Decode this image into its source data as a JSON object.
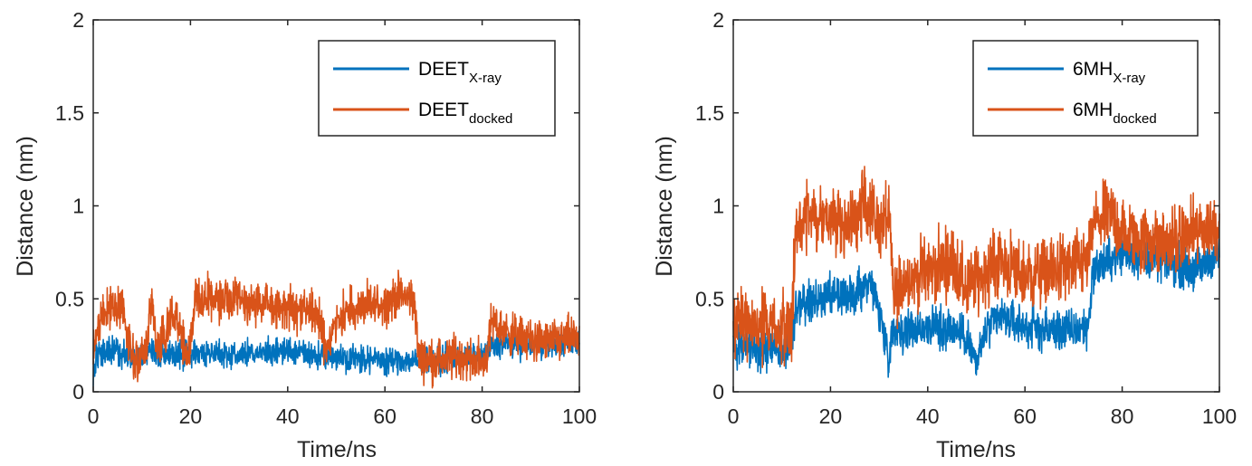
{
  "colors": {
    "xray": "#0072BD",
    "docked": "#D95319",
    "axis": "#262626"
  },
  "chart_data": [
    {
      "type": "line",
      "xlabel": "Time/ns",
      "ylabel": "Distance (nm)",
      "xlim": [
        0,
        100
      ],
      "ylim": [
        0,
        2
      ],
      "xticks": [
        "0",
        "20",
        "40",
        "60",
        "80",
        "100"
      ],
      "yticks": [
        "0",
        "0.5",
        "1",
        "1.5",
        "2"
      ],
      "grid": false,
      "legend_position": "top-right",
      "series": [
        {
          "name": "DEET",
          "name_sub": "X-ray",
          "x": [
            0,
            1,
            2,
            4,
            6,
            8,
            10,
            12,
            14,
            16,
            18,
            20,
            25,
            30,
            35,
            40,
            45,
            50,
            55,
            60,
            65,
            67,
            70,
            75,
            80,
            82,
            85,
            90,
            95,
            100
          ],
          "values": [
            0.12,
            0.2,
            0.21,
            0.22,
            0.2,
            0.19,
            0.2,
            0.22,
            0.2,
            0.21,
            0.2,
            0.21,
            0.21,
            0.2,
            0.21,
            0.22,
            0.2,
            0.19,
            0.18,
            0.17,
            0.17,
            0.16,
            0.17,
            0.18,
            0.18,
            0.24,
            0.26,
            0.25,
            0.26,
            0.27
          ],
          "noise": 0.035
        },
        {
          "name": "DEET",
          "name_sub": "docked",
          "x": [
            0,
            1,
            2,
            3,
            5,
            6,
            7,
            8,
            10,
            11,
            12,
            13,
            15,
            16,
            18,
            19,
            20,
            21,
            25,
            30,
            35,
            40,
            45,
            47,
            48,
            50,
            55,
            60,
            63,
            66,
            67,
            70,
            75,
            80,
            81,
            82,
            85,
            90,
            95,
            100
          ],
          "values": [
            0.2,
            0.35,
            0.42,
            0.45,
            0.45,
            0.46,
            0.3,
            0.18,
            0.2,
            0.22,
            0.5,
            0.25,
            0.3,
            0.45,
            0.35,
            0.2,
            0.22,
            0.5,
            0.5,
            0.48,
            0.47,
            0.45,
            0.43,
            0.35,
            0.22,
            0.4,
            0.45,
            0.48,
            0.52,
            0.5,
            0.18,
            0.17,
            0.19,
            0.16,
            0.2,
            0.38,
            0.32,
            0.28,
            0.27,
            0.3
          ],
          "noise": 0.055
        }
      ]
    },
    {
      "type": "line",
      "xlabel": "Time/ns",
      "ylabel": "Distance (nm)",
      "xlim": [
        0,
        100
      ],
      "ylim": [
        0,
        2
      ],
      "xticks": [
        "0",
        "20",
        "40",
        "60",
        "80",
        "100"
      ],
      "yticks": [
        "0",
        "0.5",
        "1",
        "1.5",
        "2"
      ],
      "grid": false,
      "legend_position": "top-right",
      "series": [
        {
          "name": "6MH",
          "name_sub": "X-ray",
          "x": [
            0,
            5,
            10,
            12,
            13,
            15,
            20,
            25,
            28,
            30,
            31,
            32,
            33,
            35,
            40,
            45,
            48,
            50,
            52,
            55,
            60,
            65,
            70,
            73,
            74,
            78,
            80,
            85,
            90,
            95,
            100
          ],
          "values": [
            0.25,
            0.24,
            0.23,
            0.25,
            0.45,
            0.48,
            0.5,
            0.52,
            0.6,
            0.45,
            0.3,
            0.2,
            0.35,
            0.33,
            0.35,
            0.34,
            0.3,
            0.15,
            0.33,
            0.4,
            0.35,
            0.33,
            0.33,
            0.35,
            0.65,
            0.72,
            0.75,
            0.72,
            0.7,
            0.65,
            0.75
          ],
          "noise": 0.055
        },
        {
          "name": "6MH",
          "name_sub": "docked",
          "x": [
            0,
            5,
            10,
            12,
            13,
            15,
            20,
            25,
            27,
            30,
            32,
            33,
            35,
            40,
            45,
            48,
            50,
            55,
            60,
            65,
            70,
            73,
            74,
            78,
            80,
            85,
            90,
            95,
            100
          ],
          "values": [
            0.35,
            0.36,
            0.36,
            0.38,
            0.85,
            0.95,
            0.92,
            0.9,
            1.05,
            0.88,
            0.95,
            0.5,
            0.6,
            0.65,
            0.7,
            0.55,
            0.6,
            0.7,
            0.62,
            0.65,
            0.67,
            0.7,
            0.9,
            0.95,
            0.85,
            0.82,
            0.8,
            0.85,
            0.9
          ],
          "noise": 0.09
        }
      ]
    }
  ]
}
